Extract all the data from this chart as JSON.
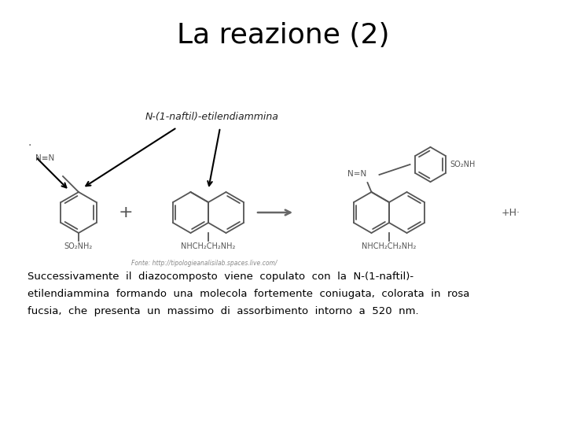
{
  "title": "La reazione (2)",
  "title_fontsize": 26,
  "label_annotation": "N-(1-naftil)-etilendiammina",
  "fonte": "Fonte: http://tipologieanalisilab.spaces.live.com/",
  "body_line1": "Successivamente  il  diazocomposto  viene  copulato  con  la  N-(1-naftil)-",
  "body_line2": "etilendiammina  formando  una  molecola  fortemente  coniugata,  colorata  in  rosa",
  "body_line3": "fucsia,  che  presenta  un  massimo  di  assorbimento  intorno  a  520  nm.",
  "background_color": "#ffffff",
  "text_color": "#000000",
  "diagram_color": "#555555"
}
